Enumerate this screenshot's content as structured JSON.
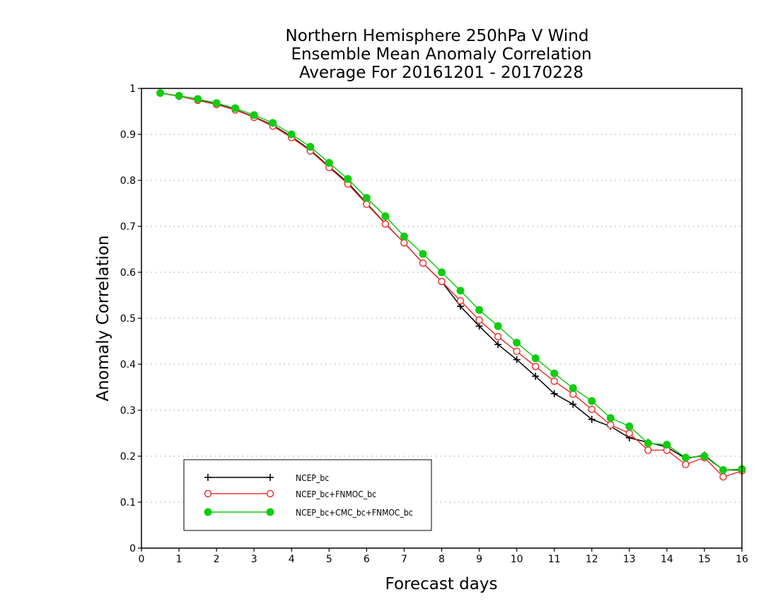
{
  "chart_data": {
    "type": "line",
    "title": [
      "Northern Hemisphere 250hPa V Wind",
      "Ensemble Mean Anomaly Correlation",
      "Average For 20161201 - 20170228"
    ],
    "xlabel": "Forecast days",
    "ylabel": "Anomaly Correlation",
    "xlim": [
      0,
      16
    ],
    "ylim": [
      0,
      1
    ],
    "x_ticks": [
      "0",
      "1",
      "2",
      "3",
      "4",
      "5",
      "6",
      "7",
      "8",
      "9",
      "10",
      "11",
      "12",
      "13",
      "14",
      "15",
      "16"
    ],
    "y_ticks": [
      "0",
      "0.1",
      "0.2",
      "0.3",
      "0.4",
      "0.5",
      "0.6",
      "0.7",
      "0.8",
      "0.9",
      "1"
    ],
    "grid": "horizontal dotted",
    "legend_position": "bottom-left",
    "x": [
      0.5,
      1,
      1.5,
      2,
      2.5,
      3,
      3.5,
      4,
      4.5,
      5,
      5.5,
      6,
      6.5,
      7,
      7.5,
      8,
      8.5,
      9,
      9.5,
      10,
      10.5,
      11,
      11.5,
      12,
      12.5,
      13,
      13.5,
      14,
      14.5,
      15,
      15.5,
      16
    ],
    "series": [
      {
        "name": "NCEP_bc",
        "color": "#000000",
        "marker": "plus",
        "values": [
          0.99,
          0.983,
          0.975,
          0.966,
          0.954,
          0.938,
          0.92,
          0.895,
          0.866,
          0.83,
          0.795,
          0.75,
          0.706,
          0.664,
          0.62,
          0.58,
          0.526,
          0.483,
          0.443,
          0.41,
          0.374,
          0.336,
          0.313,
          0.28,
          0.265,
          0.24,
          0.23,
          0.22,
          0.195,
          0.202,
          0.17,
          0.17
        ]
      },
      {
        "name": "NCEP_bc+FNMOC_bc",
        "color": "#ee3333",
        "marker": "open-circle",
        "values": [
          0.99,
          0.983,
          0.974,
          0.965,
          0.953,
          0.937,
          0.918,
          0.893,
          0.864,
          0.828,
          0.792,
          0.748,
          0.705,
          0.664,
          0.62,
          0.58,
          0.538,
          0.496,
          0.46,
          0.428,
          0.395,
          0.363,
          0.335,
          0.302,
          0.268,
          0.25,
          0.213,
          0.213,
          0.182,
          0.197,
          0.155,
          0.168
        ]
      },
      {
        "name": "NCEP_bc+CMC_bc+FNMOC_bc",
        "color": "#11cc11",
        "marker": "filled-circle",
        "values": [
          0.99,
          0.984,
          0.977,
          0.968,
          0.957,
          0.942,
          0.925,
          0.9,
          0.873,
          0.838,
          0.803,
          0.762,
          0.722,
          0.678,
          0.64,
          0.6,
          0.56,
          0.518,
          0.483,
          0.447,
          0.413,
          0.38,
          0.348,
          0.32,
          0.283,
          0.265,
          0.228,
          0.225,
          0.197,
          0.2,
          0.17,
          0.172
        ]
      }
    ]
  }
}
